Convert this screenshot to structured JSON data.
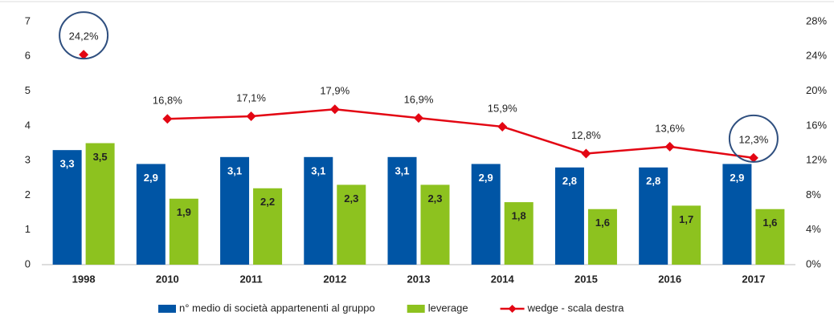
{
  "chart_data": {
    "type": "bar",
    "categories": [
      "1998",
      "2010",
      "2011",
      "2012",
      "2013",
      "2014",
      "2015",
      "2016",
      "2017"
    ],
    "series": [
      {
        "name": "n° medio di società appartenenti al gruppo",
        "color": "#0055a5",
        "values": [
          3.3,
          2.9,
          3.1,
          3.1,
          3.1,
          2.9,
          2.8,
          2.8,
          2.9
        ],
        "value_labels": [
          "3,3",
          "2,9",
          "3,1",
          "3,1",
          "3,1",
          "2,9",
          "2,8",
          "2,8",
          "2,9"
        ]
      },
      {
        "name": "leverage",
        "color": "#8dc21f",
        "values": [
          3.5,
          1.9,
          2.2,
          2.3,
          2.3,
          1.8,
          1.6,
          1.7,
          1.6
        ],
        "value_labels": [
          "3,5",
          "1,9",
          "2,2",
          "2,3",
          "2,3",
          "1,8",
          "1,6",
          "1,7",
          "1,6"
        ]
      },
      {
        "name": "wedge - scala destra",
        "color": "#e30613",
        "type": "line",
        "axis": "y2",
        "values": [
          24.2,
          16.8,
          17.1,
          17.9,
          16.9,
          15.9,
          12.8,
          13.6,
          12.3
        ],
        "value_labels": [
          "24,2%",
          "16,8%",
          "17,1%",
          "17,9%",
          "16,9%",
          "15,9%",
          "12,8%",
          "13,6%",
          "12,3%"
        ],
        "broken_after": [
          0
        ],
        "circled": [
          0,
          8
        ]
      }
    ],
    "ylim": [
      0,
      7
    ],
    "yticks": [
      0,
      1,
      2,
      3,
      4,
      5,
      6,
      7
    ],
    "y2lim": [
      0,
      28
    ],
    "y2ticks": [
      {
        "value": 0,
        "label": "0%"
      },
      {
        "value": 4,
        "label": "4%"
      },
      {
        "value": 8,
        "label": "8%"
      },
      {
        "value": 12,
        "label": "12%"
      },
      {
        "value": 16,
        "label": "16%"
      },
      {
        "value": 20,
        "label": "20%"
      },
      {
        "value": 24,
        "label": "24%"
      },
      {
        "value": 28,
        "label": "28%"
      }
    ],
    "legend": "bottom",
    "grid": false
  }
}
